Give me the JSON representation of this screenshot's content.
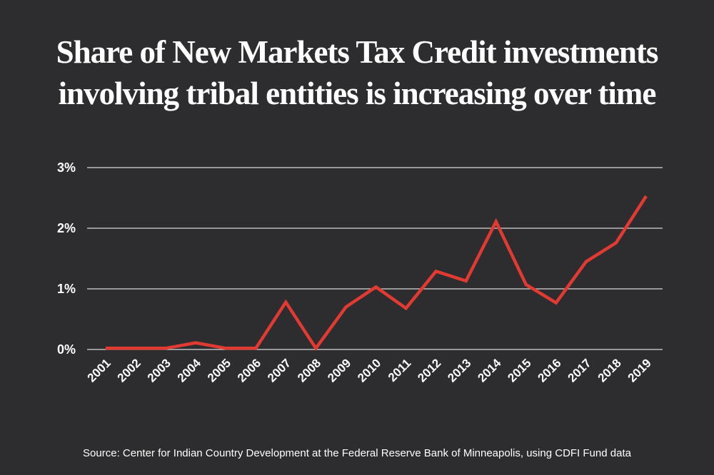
{
  "title_lines": [
    "Share of New Markets Tax Credit investments",
    "involving tribal entities is increasing over time"
  ],
  "source": "Source: Center for Indian Country Development at the Federal Reserve Bank of Minneapolis, using CDFI Fund data",
  "colors": {
    "background": "#2d2c2e",
    "line": "#e03a32",
    "grid": "#d9d9d9",
    "text": "#ffffff"
  },
  "chart_data": {
    "type": "line",
    "title": "Share of New Markets Tax Credit investments involving tribal entities is increasing over time",
    "xlabel": "",
    "ylabel": "",
    "ylim": [
      0,
      3
    ],
    "yticks": [
      "0%",
      "1%",
      "2%",
      "3%"
    ],
    "grid": true,
    "categories": [
      "2001",
      "2002",
      "2003",
      "2004",
      "2005",
      "2006",
      "2007",
      "2008",
      "2009",
      "2010",
      "2011",
      "2012",
      "2013",
      "2014",
      "2015",
      "2016",
      "2017",
      "2018",
      "2019"
    ],
    "series": [
      {
        "values": [
          0.02,
          0.02,
          0.02,
          0.11,
          0.02,
          0.02,
          0.78,
          0.02,
          0.7,
          1.03,
          0.68,
          1.29,
          1.13,
          2.11,
          1.07,
          0.77,
          1.45,
          1.76,
          2.53
        ]
      }
    ]
  }
}
